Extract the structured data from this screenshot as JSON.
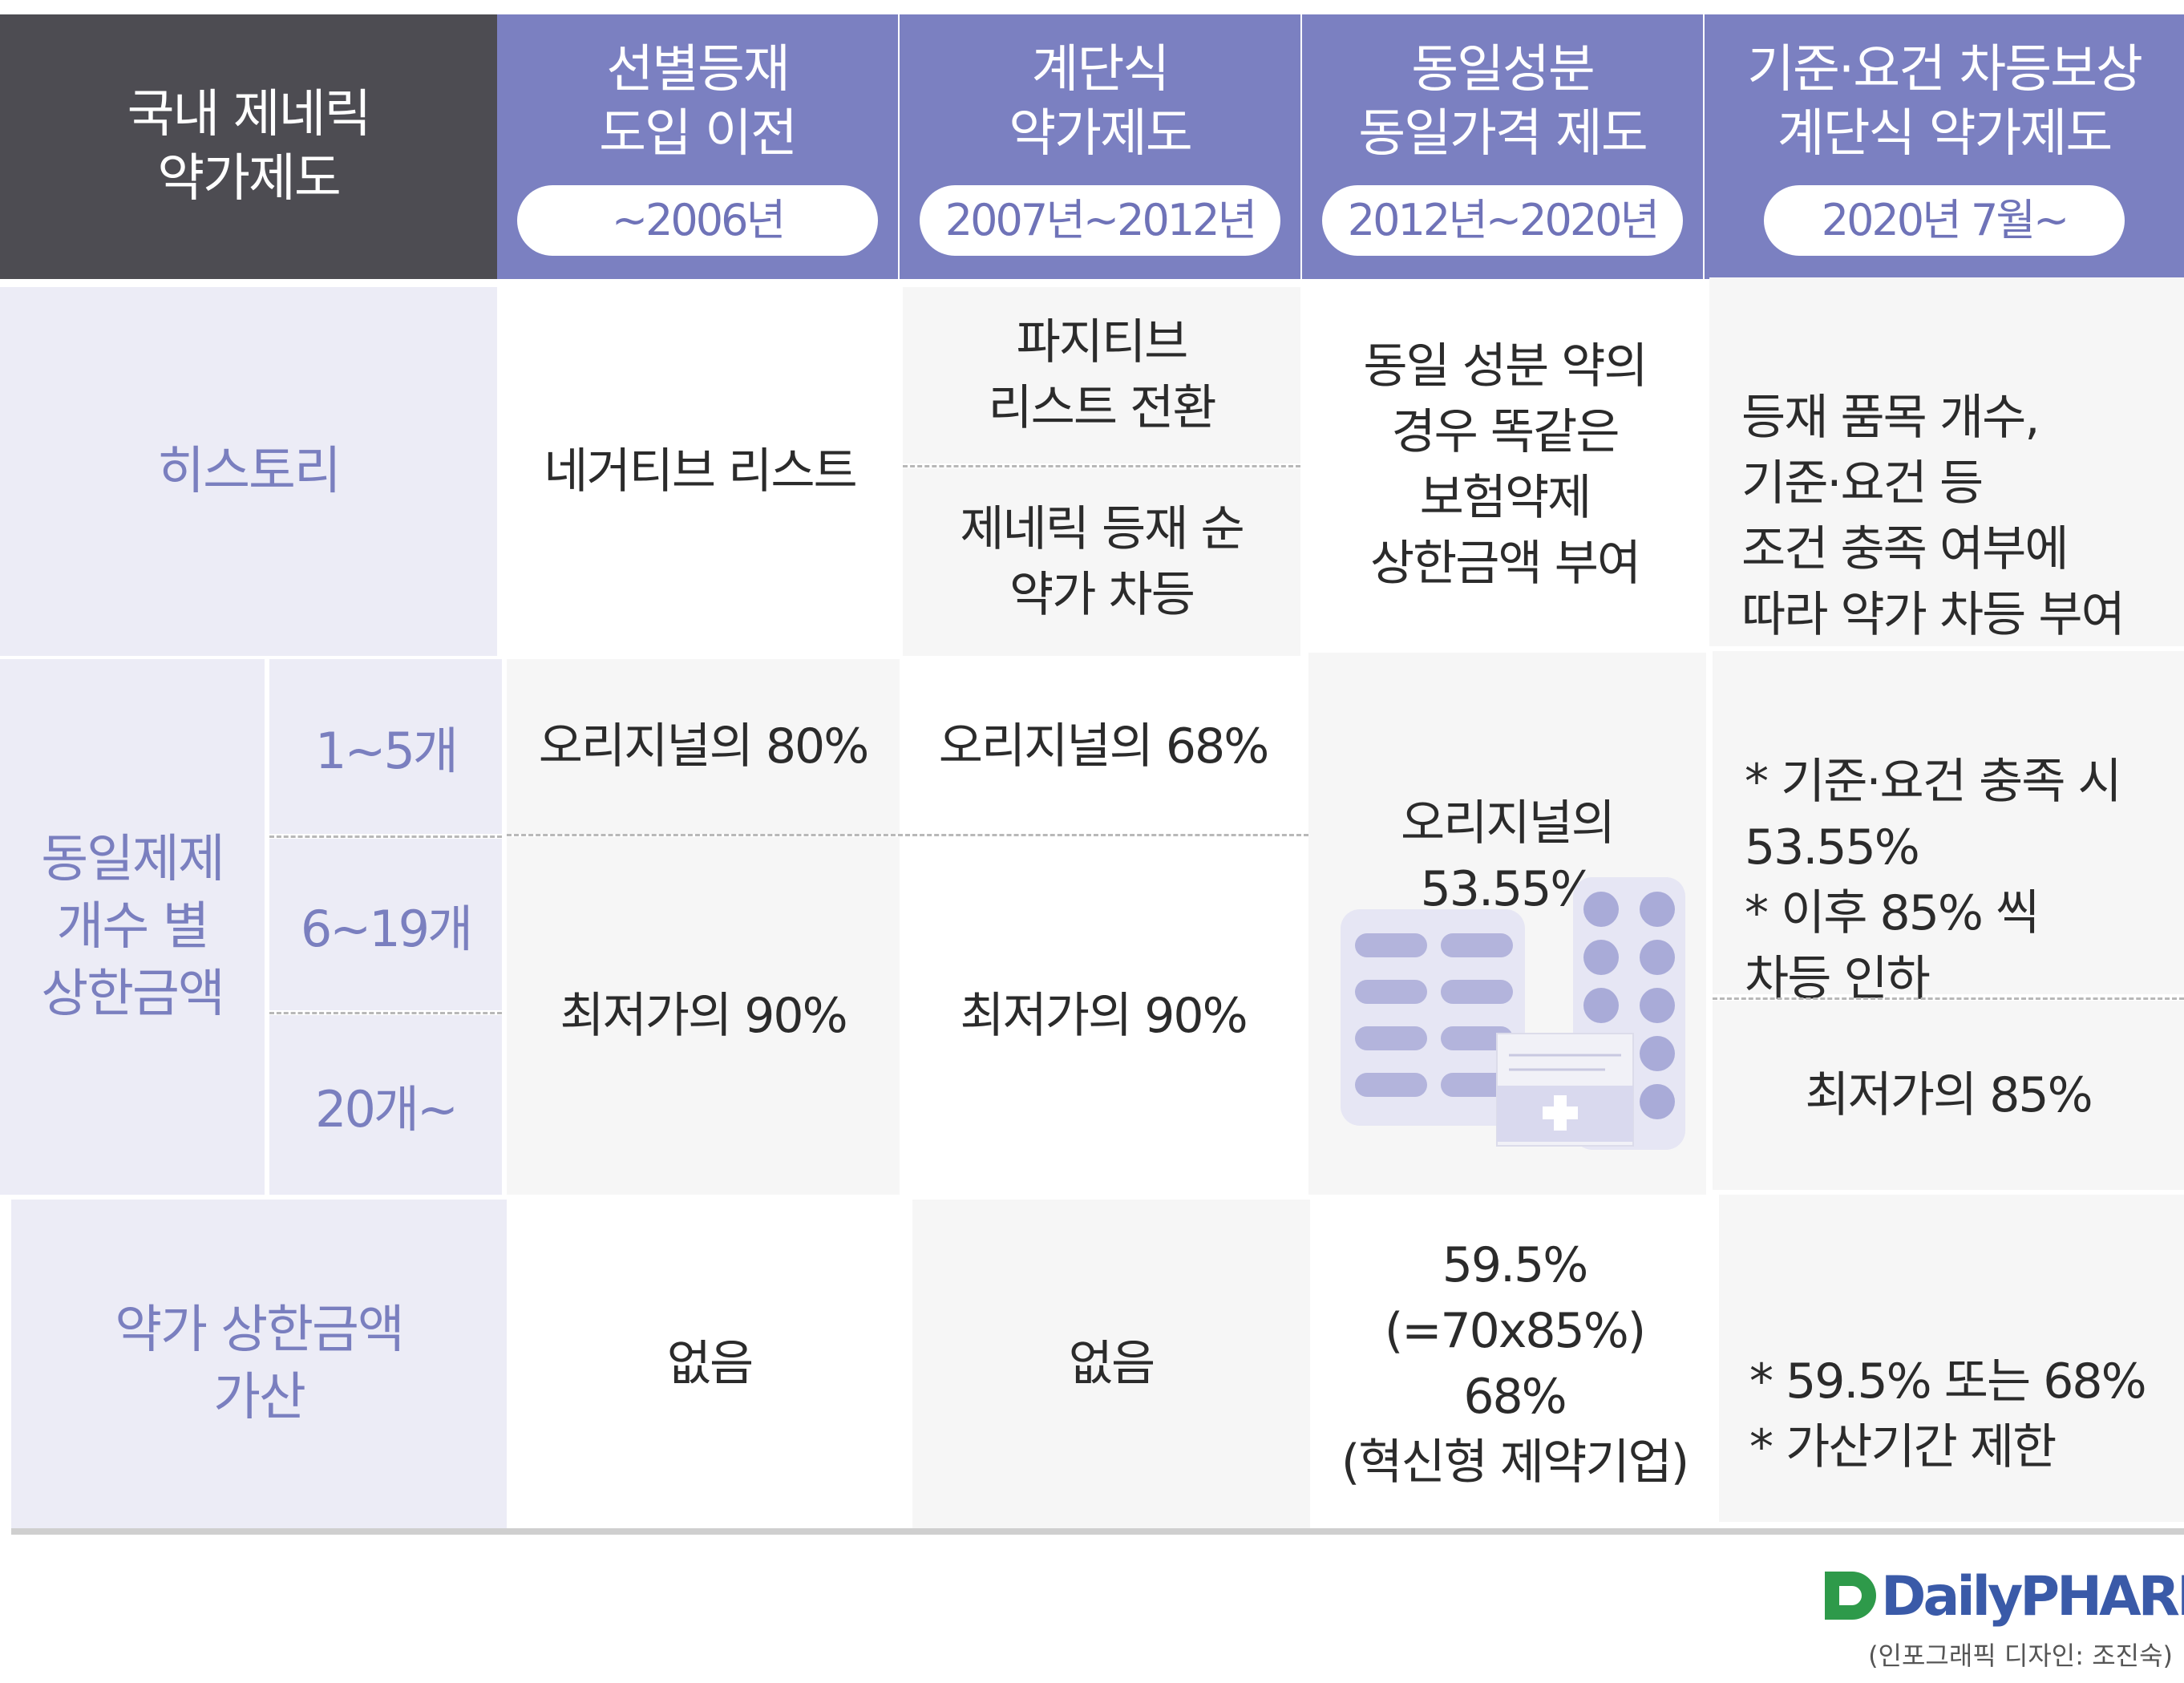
{
  "header": {
    "corner": "국내 제네릭\n약가제도",
    "columns": [
      {
        "title": "선별등재\n도입 이전",
        "period": "~2006년"
      },
      {
        "title": "계단식\n약가제도",
        "period": "2007년~2012년"
      },
      {
        "title": "동일성분\n동일가격 제도",
        "period": "2012년~2020년"
      },
      {
        "title": "기준·요건 차등보상\n계단식 약가제도",
        "period": "2020년 7월~"
      }
    ]
  },
  "rows": {
    "history": {
      "label": "히스토리",
      "col1": "네거티브 리스트",
      "col2_top": "파지티브\n리스트 전환",
      "col2_bottom": "제네릭 등재 순\n약가 차등",
      "col3": "동일 성분 약의\n경우 똑같은\n보험약제\n상한금액 부여",
      "col4": "등재 품목 개수,\n기준·요건 등\n조건 충족 여부에\n따라 약가 차등 부여"
    },
    "ceiling": {
      "label": "동일제제\n개수 별\n상한금액",
      "sub": [
        "1~5개",
        "6~19개",
        "20개~"
      ],
      "col1_top": "오리지널의 80%",
      "col1_bottom": "최저가의 90%",
      "col2_top": "오리지널의 68%",
      "col2_bottom": "최저가의 90%",
      "col3": "오리지널의\n53.55%",
      "col4_top": "* 기준·요건 충족 시\n   53.55%\n* 이후 85% 씩\n   차등 인하",
      "col4_bottom": "최저가의 85%"
    },
    "addition": {
      "label": "약가 상한금액\n가산",
      "col1": "없음",
      "col2": "없음",
      "col3": "59.5%\n(=70x85%)\n68%\n(혁신형 제약기업)",
      "col4": "* 59.5% 또는 68%\n* 가산기간 제한"
    }
  },
  "footer": {
    "logo": "DailyPHARM",
    "credit": "(인포그래픽 디자인: 조진숙)"
  },
  "colors": {
    "header_corner": "#4d4c52",
    "header_column": "#7b80c1",
    "label_bg": "#ececf6",
    "label_text": "#7a7fbf",
    "logo_green": "#2e9a4a",
    "logo_blue": "#3a5aa8"
  },
  "icons": [
    "pill-blister-illustration"
  ]
}
